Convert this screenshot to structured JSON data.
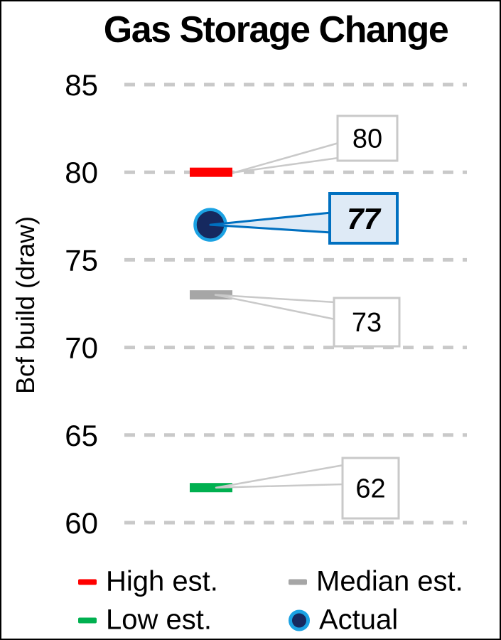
{
  "chart": {
    "title": "Gas Storage Change",
    "y_axis_label": "Bcf build (draw)"
  },
  "chart_data": {
    "type": "scatter",
    "title": "Gas Storage Change",
    "xlabel": "",
    "ylabel": "Bcf build (draw)",
    "ylim": [
      60,
      85
    ],
    "yticks": [
      85,
      80,
      75,
      70,
      65,
      60
    ],
    "grid": "horizontal-dashed",
    "legend_position": "bottom",
    "series": [
      {
        "name": "High est.",
        "value": 80,
        "marker": "dash",
        "color": "#FF0000",
        "data_label": "80",
        "label_emphasis": false
      },
      {
        "name": "Actual",
        "value": 77,
        "marker": "circle",
        "color": "#16295F",
        "marker_outline": "#1BA2E3",
        "data_label": "77",
        "label_emphasis": true
      },
      {
        "name": "Median est.",
        "value": 73,
        "marker": "dash",
        "color": "#A6A6A6",
        "data_label": "73",
        "label_emphasis": false
      },
      {
        "name": "Low est.",
        "value": 62,
        "marker": "dash",
        "color": "#00B050",
        "data_label": "62",
        "label_emphasis": false
      }
    ],
    "colors": {
      "grid": "#C9C9C9",
      "tick_text": "#000000",
      "callout_border": "#C9C9C9",
      "callout_fill": "#FFFFFF",
      "callout_text": "#000000",
      "emphasis_border": "#0070C0",
      "emphasis_fill": "#DEEAF6"
    }
  },
  "legend": {
    "items": [
      {
        "label": "High est.",
        "marker": "dash",
        "color": "#FF0000"
      },
      {
        "label": "Median est.",
        "marker": "dash",
        "color": "#A6A6A6"
      },
      {
        "label": "Low est.",
        "marker": "dash",
        "color": "#00B050"
      },
      {
        "label": "Actual",
        "marker": "circle",
        "color": "#16295F",
        "outline": "#1BA2E3"
      }
    ]
  }
}
